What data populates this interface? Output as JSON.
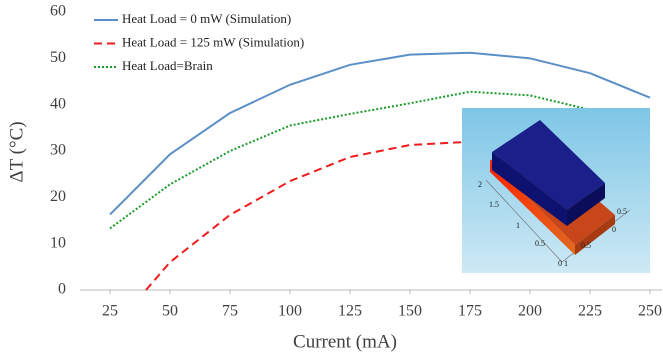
{
  "chart_data": {
    "type": "line",
    "x_label": "Current (mA)",
    "y_label": "ΔT (°C)",
    "xlim": [
      12.5,
      255
    ],
    "xticks": [
      25,
      50,
      75,
      100,
      125,
      150,
      175,
      200,
      225,
      250
    ],
    "ylim": [
      0,
      60
    ],
    "yticks": [
      0,
      10,
      20,
      30,
      40,
      50,
      60
    ],
    "grid": false,
    "legend": "top-left",
    "series": [
      {
        "name": "Heat Load = 0 mW (Simulation)",
        "color": "#5b8fc7",
        "dash": "solid",
        "x": [
          25,
          50,
          75,
          100,
          125,
          150,
          175,
          200,
          225,
          250
        ],
        "values": [
          16.3,
          29.3,
          38.2,
          44.3,
          48.6,
          50.8,
          51.2,
          50,
          46.8,
          41.5
        ]
      },
      {
        "name": "Heat Load = 125 mW (Simulation)",
        "color": "#ee1c1c",
        "dash": "dashed",
        "x": [
          40,
          50,
          75,
          100,
          125,
          150,
          175
        ],
        "values": [
          0,
          6,
          16.2,
          23.5,
          28.7,
          31.3,
          32
        ]
      },
      {
        "name": "Heat Load=Brain",
        "color": "#1a9a2a",
        "dash": "dotted",
        "x": [
          25,
          50,
          75,
          100,
          125,
          150,
          175,
          200,
          225
        ],
        "values": [
          13.3,
          22.8,
          30,
          35.5,
          38,
          40.3,
          42.8,
          42,
          38.9
        ]
      }
    ],
    "inset": {
      "labels": [
        "2",
        "1.5",
        "1",
        "0.5",
        "0",
        "1",
        "0.5",
        "0",
        "0.5"
      ]
    }
  }
}
